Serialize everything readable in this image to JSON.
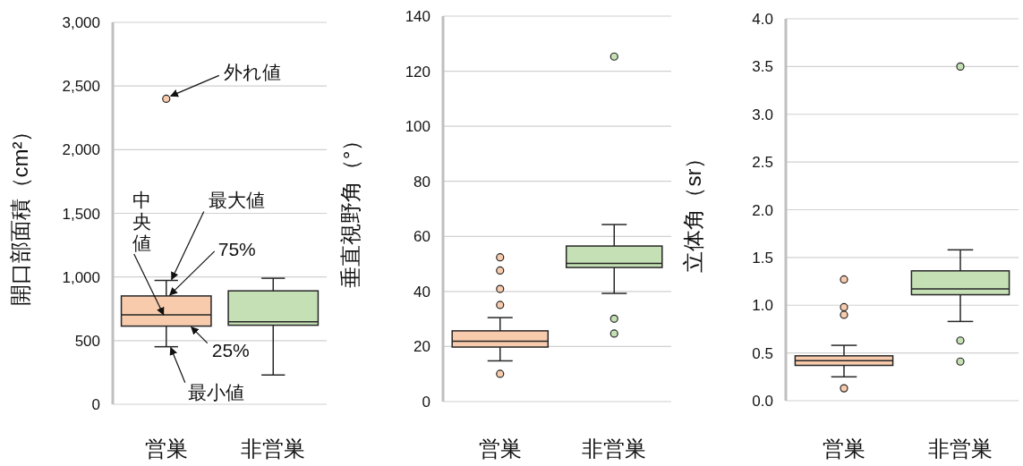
{
  "chart_data": [
    {
      "type": "box",
      "ylabel": "開口部面積（cm²）",
      "categories": [
        "営巣",
        "非営巣"
      ],
      "colors": [
        "#f8cbad",
        "#c5e0b4"
      ],
      "boxes": [
        {
          "low": 452,
          "q1": 614,
          "median": 703,
          "q3": 851,
          "high": 973,
          "outliers": [
            2400
          ]
        },
        {
          "low": 230,
          "q1": 621,
          "median": 649,
          "q3": 891,
          "high": 990
        }
      ],
      "ylim": [
        0,
        3000
      ],
      "yticks": [
        0,
        500,
        {
          "value": 1000,
          "label": "1,000"
        },
        {
          "value": 1500,
          "label": "1,500"
        },
        {
          "value": 2000,
          "label": "2,000"
        },
        {
          "value": 2500,
          "label": "2,500"
        },
        {
          "value": 3000,
          "label": "3,000"
        }
      ],
      "grid": "y",
      "annotations": [
        "外れ値",
        {
          "text": "最大値",
          "x": "営巣",
          "y": 973
        },
        {
          "text": "75%",
          "x": "営巣",
          "y": 851
        },
        {
          "text": "中央値",
          "x": "営巣",
          "y": 703
        },
        {
          "text": "25%",
          "x": "営巣",
          "y": 614
        },
        {
          "text": "最小値",
          "x": "営巣",
          "y": 452
        }
      ]
    },
    {
      "type": "box",
      "ylabel": "垂直視野角（°）",
      "categories": [
        "営巣",
        "非営巣"
      ],
      "colors": [
        "#f8cbad",
        "#c5e0b4"
      ],
      "boxes": [
        {
          "low": 14.8,
          "q1": 19.8,
          "median": 21.9,
          "q3": 25.7,
          "high": 30.5,
          "outliers": [
            52.4,
            47.6,
            40.9,
            35.1,
            10.1
          ]
        },
        {
          "low": 39.3,
          "q1": 48.7,
          "median": 50.2,
          "q3": 56.5,
          "high": 64.3,
          "outliers": [
            125.3,
            30.1,
            24.7
          ]
        }
      ],
      "ylim": [
        0,
        140
      ],
      "yticks": [
        0,
        20,
        40,
        60,
        80,
        100,
        120,
        140
      ],
      "grid": "y"
    },
    {
      "type": "box",
      "ylabel": "立体角（sr）",
      "categories": [
        "営巣",
        "非営巣"
      ],
      "colors": [
        "#f8cbad",
        "#c5e0b4"
      ],
      "boxes": [
        {
          "low": 0.25,
          "q1": 0.37,
          "median": 0.42,
          "q3": 0.47,
          "high": 0.58,
          "outliers": [
            1.27,
            0.98,
            0.9,
            0.13
          ]
        },
        {
          "low": 0.83,
          "q1": 1.11,
          "median": 1.17,
          "q3": 1.36,
          "high": 1.58,
          "outliers": [
            3.5,
            0.63,
            0.41
          ]
        }
      ],
      "ylim": [
        0,
        4
      ],
      "yticks": [
        {
          "value": 0,
          "label": "0.0"
        },
        {
          "value": 0.5,
          "label": "0.5"
        },
        {
          "value": 1,
          "label": "1.0"
        },
        {
          "value": 1.5,
          "label": "1.5"
        },
        {
          "value": 2,
          "label": "2.0"
        },
        {
          "value": 2.5,
          "label": "2.5"
        },
        {
          "value": 3,
          "label": "3.0"
        },
        {
          "value": 3.5,
          "label": "3.5"
        },
        {
          "value": 4,
          "label": "4.0"
        }
      ],
      "grid": "y"
    }
  ]
}
